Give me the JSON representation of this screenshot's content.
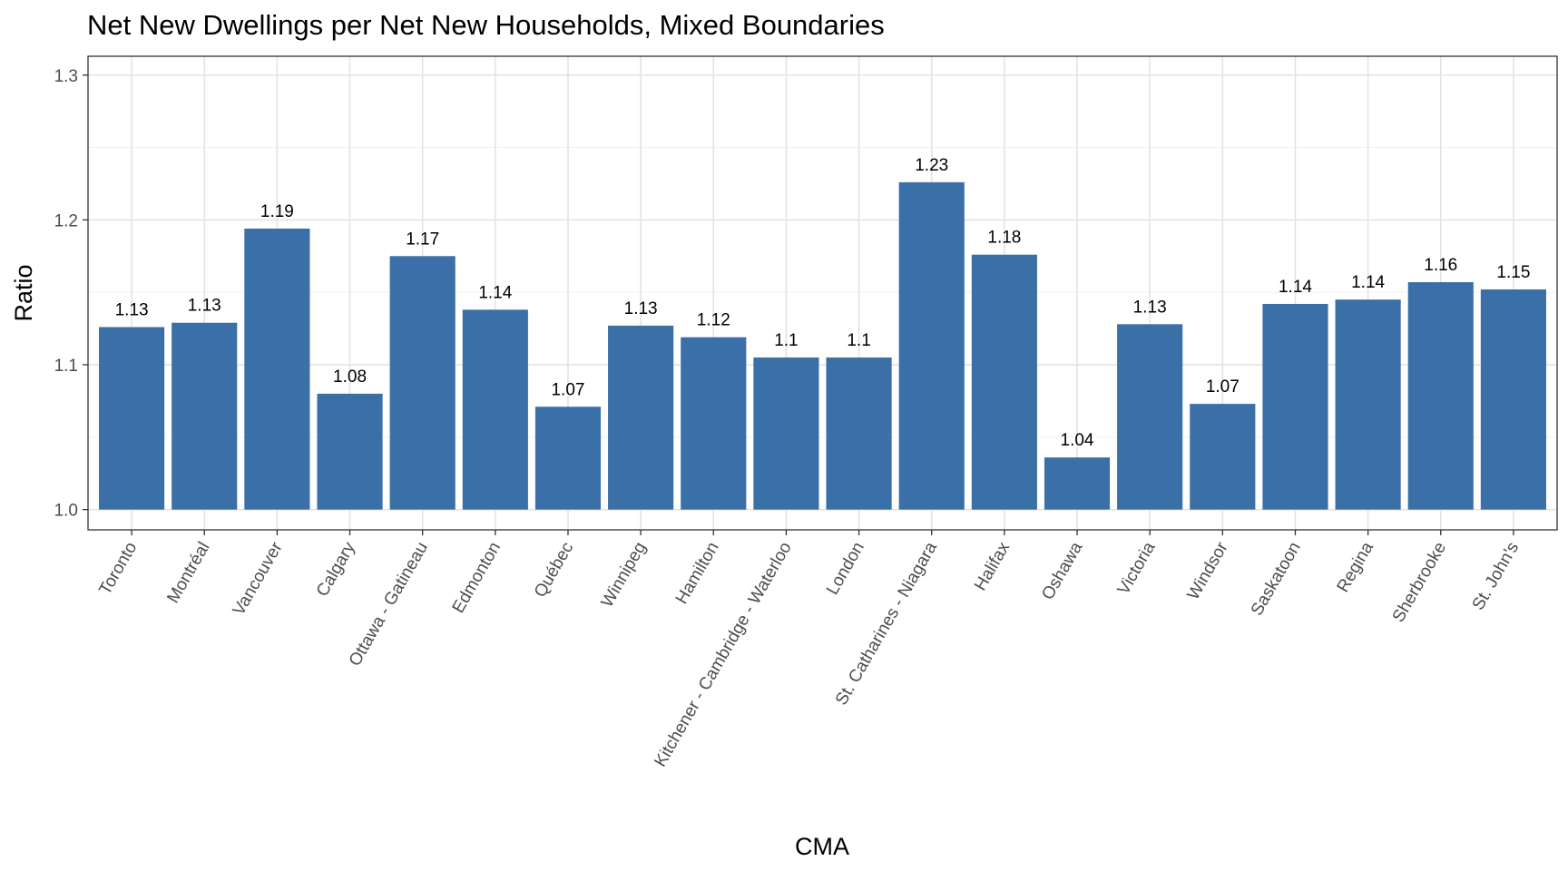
{
  "chart_data": {
    "type": "bar",
    "title": "Net New Dwellings per Net New Households, Mixed Boundaries",
    "xlabel": "CMA",
    "ylabel": "Ratio",
    "ylim": [
      0.986,
      1.313
    ],
    "yticks": [
      "1.0",
      "1.1",
      "1.2",
      "1.3"
    ],
    "ytick_values": [
      1.0,
      1.1,
      1.2,
      1.3
    ],
    "grid": true,
    "bar_baseline": 1.0,
    "bar_color": "#3a6fa8",
    "categories": [
      "Toronto",
      "Montréal",
      "Vancouver",
      "Calgary",
      "Ottawa - Gatineau",
      "Edmonton",
      "Québec",
      "Winnipeg",
      "Hamilton",
      "Kitchener - Cambridge - Waterloo",
      "London",
      "St. Catharines - Niagara",
      "Halifax",
      "Oshawa",
      "Victoria",
      "Windsor",
      "Saskatoon",
      "Regina",
      "Sherbrooke",
      "St. John's"
    ],
    "values": [
      1.126,
      1.129,
      1.194,
      1.08,
      1.175,
      1.138,
      1.071,
      1.127,
      1.119,
      1.105,
      1.105,
      1.226,
      1.176,
      1.036,
      1.128,
      1.073,
      1.142,
      1.145,
      1.157,
      1.152
    ],
    "labels": [
      "1.13",
      "1.13",
      "1.19",
      "1.08",
      "1.17",
      "1.14",
      "1.07",
      "1.13",
      "1.12",
      "1.1",
      "1.1",
      "1.23",
      "1.18",
      "1.04",
      "1.13",
      "1.07",
      "1.14",
      "1.14",
      "1.16",
      "1.15"
    ]
  }
}
